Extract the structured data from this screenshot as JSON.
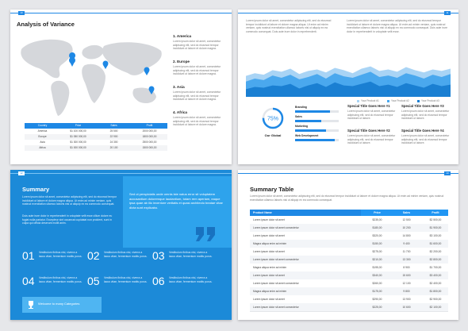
{
  "variance": {
    "page_number": "10",
    "title": "Analysis of Variance",
    "regions": [
      {
        "heading": "1. America",
        "text": "Lorem ipsum dolor sit amet, consectetur adipiscing elit, sed do eiusmod tempor incididunt ut labore et dolore magna."
      },
      {
        "heading": "2. Europe",
        "text": "Lorem ipsum dolor sit amet, consectetur adipiscing elit, sed do eiusmod tempor incididunt ut labore et dolore magna."
      },
      {
        "heading": "3. Asia",
        "text": "Lorem ipsum dolor sit amet, consectetur adipiscing elit, sed do eiusmod tempor incididunt ut labore et dolore magna."
      },
      {
        "heading": "4. Africa",
        "text": "Lorem ipsum dolor sit amet, consectetur adipiscing elit, sed do eiusmod tempor incididunt ut labore et dolore magna."
      }
    ],
    "table": {
      "header": [
        "Country",
        "Price",
        "Sales",
        "Profit"
      ],
      "rows": [
        [
          "America",
          "$1 100 000,00",
          "25 500",
          "2000 000,00"
        ],
        [
          "Europe",
          "$1 050 000,00",
          "22 900",
          "1800 000,00"
        ],
        [
          "Asia",
          "$1 300 000,00",
          "24 300",
          "2500 000,00"
        ],
        [
          "Africa",
          "$1 000 000,00",
          "20 100",
          "1500 000,00"
        ]
      ]
    }
  },
  "overview": {
    "page_number": "11",
    "intro": [
      "Lorem ipsum dolor sit amet, consectetur adipiscing elit, sed do eiusmod tempor incididunt ut labore et dolore magna aliqua. Ut enim ad minim veniam, quis nostrud exercitation ullamco laboris nisi ut aliquip ex ea commodo consequat. Duis aute irure dolor in reprehenderit.",
      "Lorem ipsum dolor sit amet, consectetur adipiscing elit, sed do eiusmod tempor incididunt ut labore et dolore magna aliqua. Ut enim ad minim veniam, quis nostrud exercitation ullamco laboris nisi ut aliquip ex ea commodo consequat. Duis aute irure dolor in reprehenderit in voluptate velit esse."
    ],
    "chart": {
      "type": "area",
      "ylim": [
        0,
        100
      ],
      "series": [
        {
          "name": "Your Product #1",
          "color": "#a9d4f5",
          "values": [
            55,
            62,
            58,
            70,
            66,
            74,
            60,
            68,
            72,
            64,
            76,
            70,
            62,
            74,
            80,
            68,
            72,
            66,
            78,
            70,
            64,
            72,
            68,
            74
          ]
        },
        {
          "name": "Your Product #2",
          "color": "#4aa8ee",
          "values": [
            40,
            48,
            44,
            56,
            50,
            58,
            46,
            52,
            60,
            48,
            62,
            54,
            50,
            58,
            66,
            52,
            56,
            50,
            62,
            56,
            48,
            58,
            52,
            60
          ]
        },
        {
          "name": "Your Product #3",
          "color": "#1a7fd2",
          "values": [
            20,
            26,
            24,
            30,
            28,
            34,
            22,
            30,
            36,
            26,
            38,
            30,
            28,
            34,
            40,
            28,
            32,
            26,
            36,
            30,
            24,
            34,
            28,
            32
          ]
        }
      ]
    },
    "donut": {
      "value": 75,
      "label": "75%",
      "vlim": [
        0,
        100
      ],
      "caption": "Our Global"
    },
    "skills_lim": [
      0,
      100
    ],
    "skills": [
      {
        "name": "Branding",
        "value": 80
      },
      {
        "name": "Sales",
        "value": 60
      },
      {
        "name": "Marketing",
        "value": 70
      },
      {
        "name": "Web Development",
        "value": 90
      }
    ],
    "specials": [
      {
        "title": "Special Title Goes Here #1",
        "text": "Lorem ipsum dolor sit amet, consectetur adipiscing elit, sed do eiusmod tempor incididunt ut labore."
      },
      {
        "title": "Special Title Goes Here #3",
        "text": "Lorem ipsum dolor sit amet, consectetur adipiscing elit, sed do eiusmod tempor incididunt ut labore."
      },
      {
        "title": "Special Title Goes Here #2",
        "text": "Lorem ipsum dolor sit amet, consectetur adipiscing elit, sed do eiusmod tempor incididunt ut labore."
      },
      {
        "title": "Special Title Goes Here #4",
        "text": "Lorem ipsum dolor sit amet, consectetur adipiscing elit, sed do eiusmod tempor incididunt ut labore."
      }
    ]
  },
  "summary": {
    "page_number": "12",
    "title": "Summary",
    "text": [
      "Lorem ipsum dolor sit amet, consectetur adipiscing elit, sed do eiusmod tempor incididunt ut labore et dolore magna aliqua. Ut enim ad minim veniam, quis nostrud exercitation ullamco laboris nisi ut aliquip ex ea commodo consequat.",
      "Duis aute irure dolor in reprehenderit in voluptate velit esse cillum dolore eu fugiat nulla pariatur. Excepteur sint occaecat cupidatat non proident, sunt in culpa qui officia deserunt mollit anim."
    ],
    "quote": "Sed ut perspiciatis unde omnis iste natus error sit voluptatem accusantium doloremque laudantium, totam rem aperiam, eaque ipsa quae ab illo inventore veritatis et quasi architecto beatae vitae dicta sunt explicabo.",
    "items": [
      {
        "number": "01",
        "text": "Vestibulum finibus nisi, viverra a lacus vitae, fermentum mattis purus."
      },
      {
        "number": "02",
        "text": "Vestibulum finibus nisi, viverra a lacus vitae, fermentum mattis purus."
      },
      {
        "number": "03",
        "text": "Vestibulum finibus nisi, viverra a lacus vitae, fermentum mattis purus."
      },
      {
        "number": "04",
        "text": "Vestibulum finibus nisi, viverra a lacus vitae, fermentum mattis purus."
      },
      {
        "number": "05",
        "text": "Vestibulum finibus nisi, viverra a lacus vitae, fermentum mattis purus."
      },
      {
        "number": "06",
        "text": "Vestibulum finibus nisi, viverra a lacus vitae, fermentum mattis purus."
      }
    ],
    "badge": "Welcome to many Categories"
  },
  "summary_table": {
    "page_number": "13",
    "title": "Summary Table",
    "intro": "Lorem ipsum dolor sit amet, consectetur adipiscing elit, sed do eiusmod tempor incididunt ut labore et dolore magna aliqua. Ut enim ad minim veniam, quis nostrud exercitation ullamco laboris nisi ut aliquip ex ea commodo consequat.",
    "header": [
      "Product Name",
      "Price",
      "Sales",
      "Profit"
    ],
    "rows": [
      [
        "Lorem ipsum dolor sit amet",
        "$235,00",
        "12 500",
        "$2 500,00"
      ],
      [
        "Lorem ipsum dolor sit amet consectetur",
        "$180,00",
        "10 200",
        "$1 900,00"
      ],
      [
        "Lorem ipsum dolor sit amet",
        "$320,00",
        "14 800",
        "$3 100,00"
      ],
      [
        "Magna aliqua enim ad minim",
        "$150,00",
        "9 400",
        "$1 600,00"
      ],
      [
        "Lorem ipsum dolor sit amet",
        "$275,00",
        "11 700",
        "$2 200,00"
      ],
      [
        "Lorem ipsum dolor sit amet consectetur",
        "$210,00",
        "13 300",
        "$2 800,00"
      ],
      [
        "Magna aliqua enim ad minim",
        "$195,00",
        "8 900",
        "$1 700,00"
      ],
      [
        "Lorem ipsum dolor sit amet",
        "$340,00",
        "15 600",
        "$3 400,00"
      ],
      [
        "Lorem ipsum dolor sit amet consectetur",
        "$260,00",
        "12 100",
        "$2 400,00"
      ],
      [
        "Magna aliqua enim ad minim",
        "$175,00",
        "9 800",
        "$1 800,00"
      ],
      [
        "Lorem ipsum dolor sit amet",
        "$290,00",
        "13 900",
        "$2 900,00"
      ],
      [
        "Lorem ipsum dolor sit amet consectetur",
        "$225,00",
        "10 600",
        "$2 100,00"
      ]
    ]
  }
}
